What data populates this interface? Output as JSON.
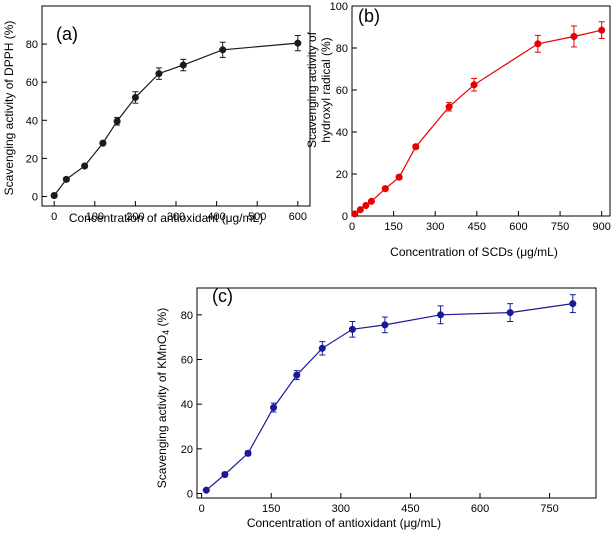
{
  "chart_data": [
    {
      "panel": "a",
      "panel_label": "(a)",
      "type": "line",
      "xlabel": "Concentration of antioxidant (μg/mL)",
      "ylabel": "Scavenging activity of DPPH (%)",
      "xlim": [
        -30,
        630
      ],
      "ylim": [
        -5,
        100
      ],
      "xticks": [
        0,
        100,
        200,
        300,
        400,
        500,
        600
      ],
      "yticks": [
        0,
        20,
        40,
        60,
        80
      ],
      "color": "#1a1a1a",
      "x": [
        0,
        30,
        75,
        120,
        155,
        200,
        258,
        318,
        415,
        600
      ],
      "y": [
        0.5,
        9,
        16,
        28,
        39.5,
        52,
        64.5,
        69,
        77,
        80.5
      ],
      "err": [
        1,
        1,
        1,
        1,
        2,
        3,
        3,
        3,
        4,
        4
      ]
    },
    {
      "panel": "b",
      "panel_label": "(b)",
      "type": "line",
      "xlabel": "Concentration of SCDs (μg/mL)",
      "ylabel_line1": "Scavenging activity of",
      "ylabel_line2": "hydroxyl radical (%)",
      "xlim": [
        0,
        930
      ],
      "ylim": [
        0,
        100
      ],
      "xticks": [
        0,
        150,
        300,
        450,
        600,
        750,
        900
      ],
      "yticks": [
        0,
        20,
        40,
        60,
        80,
        100
      ],
      "color": "#e60000",
      "x": [
        10,
        30,
        50,
        70,
        120,
        170,
        230,
        350,
        440,
        670,
        800,
        900
      ],
      "y": [
        1,
        3,
        5,
        7,
        13,
        18.5,
        33,
        52,
        62.5,
        82,
        85.5,
        88.5
      ],
      "err": [
        0.5,
        0.5,
        0.5,
        0.5,
        1,
        1,
        1,
        2,
        3,
        4,
        5,
        4
      ]
    },
    {
      "panel": "c",
      "panel_label": "(c)",
      "type": "line",
      "xlabel": "Concentration of antioxidant (μg/mL)",
      "ylabel_main": "Scavenging activity of KMnO",
      "ylabel_sub": "4",
      "ylabel_tail": " (%)",
      "xlim": [
        -10,
        850
      ],
      "ylim": [
        -2,
        92
      ],
      "xticks": [
        0,
        150,
        300,
        450,
        600,
        750
      ],
      "yticks": [
        0,
        20,
        40,
        60,
        80
      ],
      "color": "#1a1a99",
      "x": [
        10,
        50,
        100,
        155,
        205,
        260,
        325,
        395,
        515,
        665,
        800
      ],
      "y": [
        1.5,
        8.5,
        18,
        38.5,
        53,
        65,
        73.5,
        75.5,
        80,
        81,
        85
      ],
      "err": [
        0.5,
        1,
        1,
        2,
        2,
        3,
        3.5,
        3.5,
        4,
        4,
        4
      ]
    }
  ]
}
